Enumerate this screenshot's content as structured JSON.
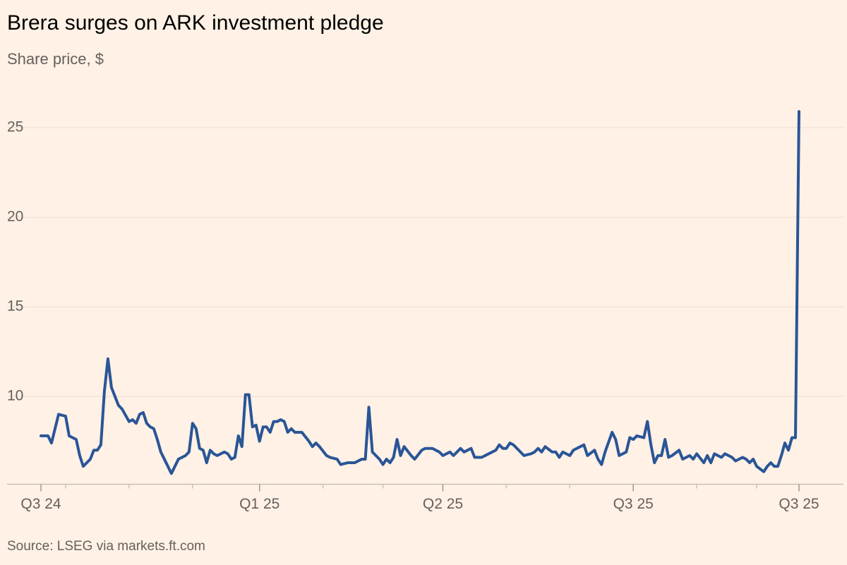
{
  "chart_data": {
    "type": "line",
    "title": "Brera surges on ARK investment pledge",
    "subtitle": "Share price, $",
    "source": "Source: LSEG via markets.ft.com",
    "color": "#2a5597",
    "grid": true,
    "ylim": [
      5.1,
      27
    ],
    "yticks": [
      10,
      15,
      20,
      25
    ],
    "xlim": [
      0,
      215
    ],
    "xticks": [
      {
        "value": 0,
        "label": "Q3 24"
      },
      {
        "value": 62,
        "label": "Q1 25"
      },
      {
        "value": 114,
        "label": "Q2 25"
      },
      {
        "value": 168,
        "label": "Q3 25"
      },
      {
        "value": 215,
        "label": "Q3 25"
      }
    ],
    "xminorticks": [
      7,
      25,
      43,
      80,
      97,
      132,
      150,
      186,
      203
    ],
    "x": [
      0,
      2,
      3,
      5,
      7,
      8,
      10,
      11,
      12,
      14,
      15,
      16,
      17,
      18,
      19,
      20,
      22,
      23,
      25,
      26,
      27,
      28,
      29,
      30,
      31,
      32,
      33,
      34,
      35,
      37,
      38,
      39,
      41,
      42,
      43,
      44,
      45,
      46,
      47,
      48,
      49,
      50,
      52,
      53,
      54,
      55,
      56,
      57,
      58,
      59,
      60,
      61,
      62,
      63,
      64,
      65,
      66,
      67,
      68,
      69,
      70,
      71,
      72,
      74,
      76,
      77,
      78,
      79,
      81,
      82,
      84,
      85,
      87,
      89,
      91,
      92,
      93,
      94,
      95,
      96,
      97,
      98,
      99,
      100,
      101,
      102,
      103,
      105,
      106,
      108,
      109,
      111,
      113,
      114,
      116,
      117,
      119,
      120,
      122,
      123,
      125,
      127,
      129,
      130,
      131,
      132,
      133,
      134,
      136,
      137,
      139,
      140,
      141,
      142,
      143,
      145,
      146,
      147,
      148,
      150,
      151,
      153,
      154,
      155,
      157,
      158,
      159,
      160,
      162,
      163,
      164,
      166,
      167,
      168,
      169,
      171,
      172,
      173,
      174,
      175,
      176,
      177,
      178,
      179,
      181,
      182,
      184,
      185,
      186,
      188,
      189,
      190,
      191,
      193,
      194,
      196,
      197,
      199,
      200,
      201,
      202,
      203,
      205,
      206,
      207,
      208,
      209,
      210,
      211,
      212,
      213,
      214,
      215
    ],
    "values": [
      7.8,
      7.8,
      7.4,
      9.0,
      8.9,
      7.8,
      7.6,
      6.7,
      6.1,
      6.5,
      7.0,
      7.0,
      7.3,
      10.3,
      12.1,
      10.5,
      9.5,
      9.3,
      8.6,
      8.7,
      8.5,
      9.0,
      9.1,
      8.5,
      8.3,
      8.2,
      7.6,
      6.9,
      6.5,
      5.7,
      6.1,
      6.5,
      6.7,
      6.9,
      8.5,
      8.2,
      7.1,
      7.0,
      6.3,
      7.0,
      6.8,
      6.7,
      6.9,
      6.8,
      6.5,
      6.6,
      7.8,
      7.2,
      10.1,
      10.1,
      8.3,
      8.4,
      7.5,
      8.3,
      8.3,
      8.0,
      8.6,
      8.6,
      8.7,
      8.6,
      8.0,
      8.2,
      8.0,
      8.0,
      7.5,
      7.2,
      7.4,
      7.2,
      6.7,
      6.6,
      6.5,
      6.2,
      6.3,
      6.3,
      6.5,
      6.5,
      9.4,
      6.9,
      6.7,
      6.5,
      6.2,
      6.5,
      6.3,
      6.6,
      7.6,
      6.7,
      7.2,
      6.7,
      6.5,
      7.0,
      7.1,
      7.1,
      6.9,
      6.7,
      6.9,
      6.7,
      7.1,
      6.9,
      7.1,
      6.6,
      6.6,
      6.8,
      7.0,
      7.3,
      7.1,
      7.1,
      7.4,
      7.3,
      6.9,
      6.7,
      6.8,
      6.9,
      7.1,
      6.9,
      7.2,
      6.9,
      6.9,
      6.6,
      6.9,
      6.7,
      7.0,
      7.2,
      7.3,
      6.7,
      7.0,
      6.5,
      6.2,
      6.9,
      8.0,
      7.6,
      6.7,
      6.9,
      7.7,
      7.6,
      7.8,
      7.7,
      8.6,
      7.3,
      6.3,
      6.7,
      6.7,
      7.6,
      6.6,
      6.7,
      7.0,
      6.5,
      6.7,
      6.5,
      6.8,
      6.3,
      6.7,
      6.3,
      6.8,
      6.6,
      6.8,
      6.6,
      6.4,
      6.6,
      6.5,
      6.3,
      6.5,
      6.1,
      5.8,
      6.1,
      6.3,
      6.1,
      6.1,
      6.7,
      7.4,
      7.0,
      7.7,
      7.7,
      25.9
    ]
  }
}
